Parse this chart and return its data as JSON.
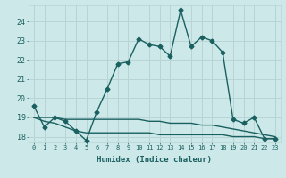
{
  "xlabel": "Humidex (Indice chaleur)",
  "ylabel": "",
  "bg_color": "#cce8e8",
  "grid_color": "#b8d4d4",
  "line_color": "#1a6060",
  "x_values": [
    0,
    1,
    2,
    3,
    4,
    5,
    6,
    7,
    8,
    9,
    10,
    11,
    12,
    13,
    14,
    15,
    16,
    17,
    18,
    19,
    20,
    21,
    22,
    23
  ],
  "line1_y": [
    19.6,
    18.5,
    19.0,
    18.8,
    18.3,
    17.8,
    19.3,
    20.5,
    21.8,
    21.9,
    23.1,
    22.8,
    22.7,
    22.2,
    24.6,
    22.7,
    23.2,
    23.0,
    22.4,
    18.9,
    18.7,
    19.0,
    17.9,
    17.9
  ],
  "line2_y": [
    19.0,
    19.0,
    19.0,
    18.9,
    18.9,
    18.9,
    18.9,
    18.9,
    18.9,
    18.9,
    18.9,
    18.8,
    18.8,
    18.7,
    18.7,
    18.7,
    18.6,
    18.6,
    18.5,
    18.4,
    18.3,
    18.2,
    18.1,
    18.0
  ],
  "line3_y": [
    19.0,
    18.8,
    18.7,
    18.5,
    18.3,
    18.2,
    18.2,
    18.2,
    18.2,
    18.2,
    18.2,
    18.2,
    18.1,
    18.1,
    18.1,
    18.1,
    18.1,
    18.1,
    18.1,
    18.0,
    18.0,
    18.0,
    17.9,
    17.9
  ],
  "ylim": [
    17.7,
    24.85
  ],
  "yticks": [
    18,
    19,
    20,
    21,
    22,
    23,
    24
  ],
  "xticks": [
    0,
    1,
    2,
    3,
    4,
    5,
    6,
    7,
    8,
    9,
    10,
    11,
    12,
    13,
    14,
    15,
    16,
    17,
    18,
    19,
    20,
    21,
    22,
    23
  ]
}
